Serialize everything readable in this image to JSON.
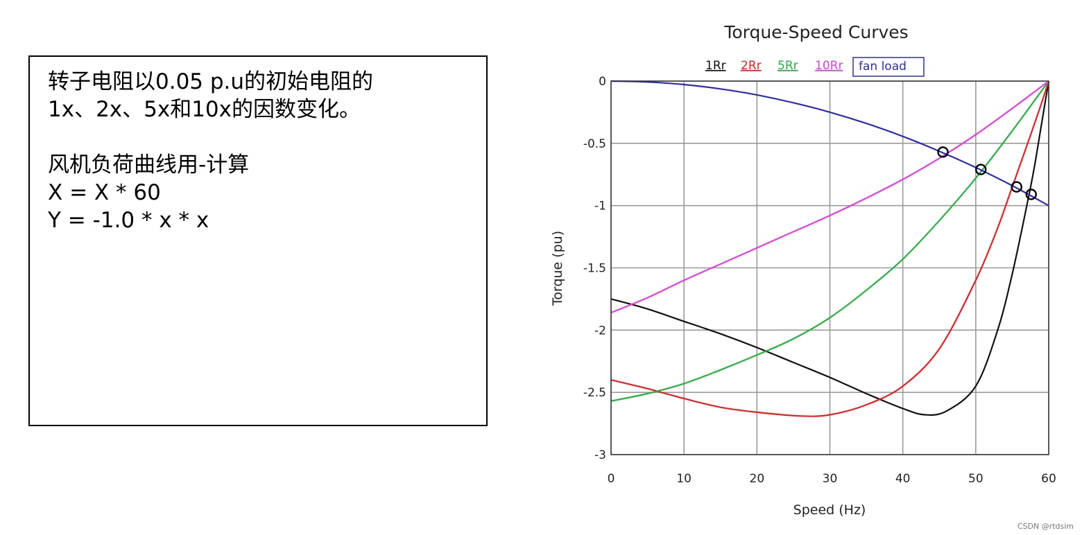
{
  "note": {
    "lines": [
      "转子电阻以0.05 p.u的初始电阻的",
      "1x、2x、5x和10x的因数变化。",
      "",
      "风机负荷曲线用-计算",
      "X = X * 60",
      "Y = -1.0 * x * x"
    ]
  },
  "chart_data": {
    "type": "line",
    "title": "Torque-Speed Curves",
    "xlabel": "Speed (Hz)",
    "ylabel": "Torque (pu)",
    "xlim": [
      0,
      60
    ],
    "ylim": [
      -3,
      0
    ],
    "xticks": [
      0,
      10,
      20,
      30,
      40,
      50,
      60
    ],
    "yticks": [
      0,
      -0.5,
      -1,
      -1.5,
      -2,
      -2.5,
      -3
    ],
    "grid": true,
    "legend_position": "top",
    "series": [
      {
        "name": "1Rr",
        "color": "#111111",
        "x": [
          0,
          5,
          10,
          15,
          20,
          25,
          30,
          35,
          40,
          43,
          46,
          50,
          53,
          55,
          57,
          58,
          59,
          60
        ],
        "y": [
          -1.75,
          -1.83,
          -1.93,
          -2.03,
          -2.14,
          -2.26,
          -2.38,
          -2.51,
          -2.63,
          -2.68,
          -2.65,
          -2.45,
          -2.0,
          -1.55,
          -1.0,
          -0.7,
          -0.35,
          0
        ]
      },
      {
        "name": "2Rr",
        "color": "#ee1c1c",
        "x": [
          0,
          5,
          10,
          15,
          20,
          26,
          30,
          35,
          40,
          45,
          50,
          53,
          55,
          57,
          59,
          60
        ],
        "y": [
          -2.4,
          -2.47,
          -2.55,
          -2.62,
          -2.66,
          -2.69,
          -2.68,
          -2.6,
          -2.45,
          -2.15,
          -1.6,
          -1.18,
          -0.85,
          -0.52,
          -0.18,
          0
        ]
      },
      {
        "name": "5Rr",
        "color": "#1fb53b",
        "x": [
          0,
          5,
          10,
          15,
          20,
          25,
          30,
          35,
          40,
          45,
          50,
          55,
          60
        ],
        "y": [
          -2.57,
          -2.51,
          -2.43,
          -2.32,
          -2.2,
          -2.07,
          -1.9,
          -1.68,
          -1.43,
          -1.12,
          -0.78,
          -0.4,
          0
        ]
      },
      {
        "name": "10Rr",
        "color": "#e83ae8",
        "x": [
          0,
          5,
          10,
          15,
          20,
          25,
          30,
          35,
          40,
          45,
          50,
          55,
          60
        ],
        "y": [
          -1.86,
          -1.74,
          -1.6,
          -1.47,
          -1.34,
          -1.21,
          -1.08,
          -0.94,
          -0.79,
          -0.62,
          -0.43,
          -0.22,
          0
        ]
      },
      {
        "name": "fan load",
        "color": "#2b2bbf",
        "x": [
          0,
          5,
          10,
          15,
          20,
          25,
          30,
          35,
          40,
          45,
          50,
          55,
          60
        ],
        "y": [
          0,
          -0.007,
          -0.028,
          -0.063,
          -0.111,
          -0.174,
          -0.25,
          -0.34,
          -0.444,
          -0.563,
          -0.694,
          -0.84,
          -1.0
        ]
      }
    ],
    "markers": [
      {
        "x": 45.5,
        "y": -0.57
      },
      {
        "x": 50.7,
        "y": -0.71
      },
      {
        "x": 55.6,
        "y": -0.85
      },
      {
        "x": 57.6,
        "y": -0.91
      }
    ]
  },
  "watermark": "CSDN @rtdsim"
}
